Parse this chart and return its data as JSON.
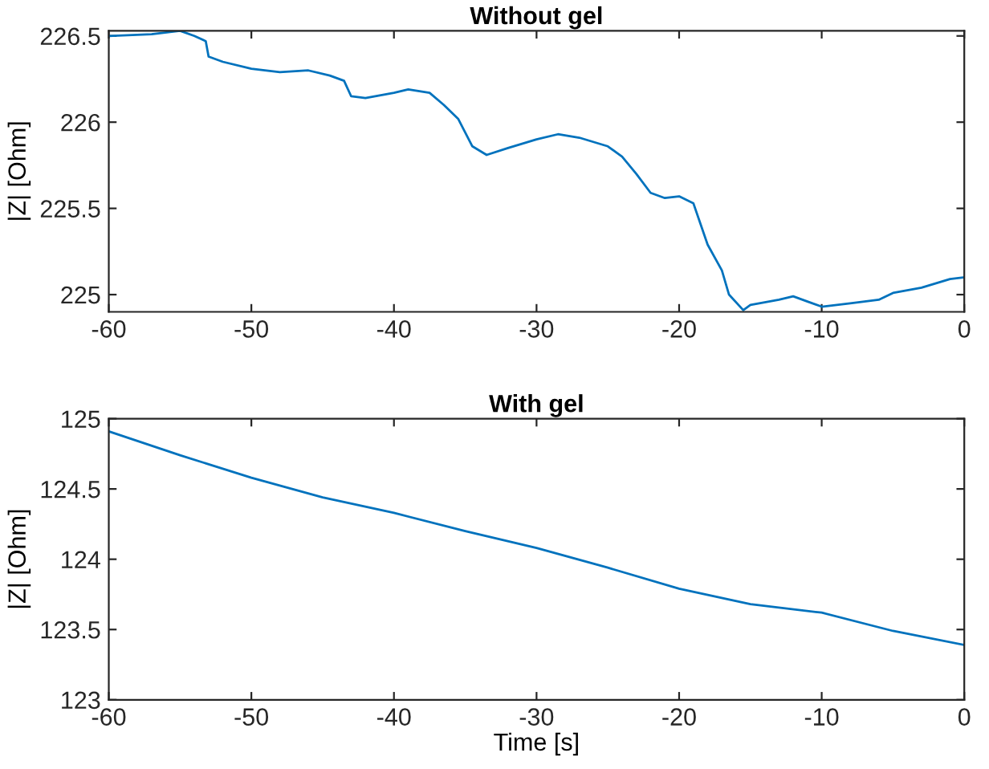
{
  "chart_data": [
    {
      "type": "line",
      "title": "Without gel",
      "ylabel": "|Z| [Ohm]",
      "xlim": [
        -60,
        0
      ],
      "ylim": [
        224.9,
        226.53
      ],
      "xticks": [
        -60,
        -50,
        -40,
        -30,
        -20,
        -10,
        0
      ],
      "yticks": [
        225,
        225.5,
        226,
        226.5
      ],
      "grid": false,
      "series": [
        {
          "color": "#0072bd",
          "x": [
            -60,
            -57,
            -55,
            -54,
            -53.2,
            -53,
            -52,
            -50,
            -48,
            -46,
            -44.5,
            -43.5,
            -43,
            -42,
            -40,
            -39,
            -37.5,
            -36.5,
            -35.5,
            -34.5,
            -33.5,
            -32,
            -30,
            -28.5,
            -27,
            -25,
            -24,
            -23,
            -22,
            -21,
            -20,
            -19,
            -18.5,
            -18,
            -17,
            -16.5,
            -15.5,
            -15,
            -13,
            -12,
            -11,
            -10,
            -8,
            -6,
            -5,
            -3,
            -1,
            0
          ],
          "values": [
            226.5,
            226.51,
            226.53,
            226.5,
            226.47,
            226.38,
            226.35,
            226.31,
            226.29,
            226.3,
            226.27,
            226.24,
            226.15,
            226.14,
            226.17,
            226.19,
            226.17,
            226.1,
            226.02,
            225.86,
            225.81,
            225.85,
            225.9,
            225.93,
            225.91,
            225.86,
            225.8,
            225.7,
            225.59,
            225.56,
            225.57,
            225.53,
            225.41,
            225.29,
            225.14,
            225.0,
            224.91,
            224.94,
            224.97,
            224.99,
            224.96,
            224.93,
            224.95,
            224.97,
            225.01,
            225.04,
            225.09,
            225.1
          ]
        }
      ]
    },
    {
      "type": "line",
      "title": "With gel",
      "xlabel": "Time [s]",
      "ylabel": "|Z| [Ohm]",
      "xlim": [
        -60,
        0
      ],
      "ylim": [
        123,
        125
      ],
      "xticks": [
        -60,
        -50,
        -40,
        -30,
        -20,
        -10,
        0
      ],
      "yticks": [
        123,
        123.5,
        124,
        124.5,
        125
      ],
      "grid": false,
      "series": [
        {
          "color": "#0072bd",
          "x": [
            -60,
            -55,
            -50,
            -45,
            -40,
            -35,
            -30,
            -25,
            -20,
            -15,
            -10,
            -5,
            0
          ],
          "values": [
            124.91,
            124.74,
            124.58,
            124.44,
            124.33,
            124.2,
            124.08,
            123.94,
            123.79,
            123.68,
            123.62,
            123.49,
            123.39
          ]
        }
      ]
    }
  ]
}
